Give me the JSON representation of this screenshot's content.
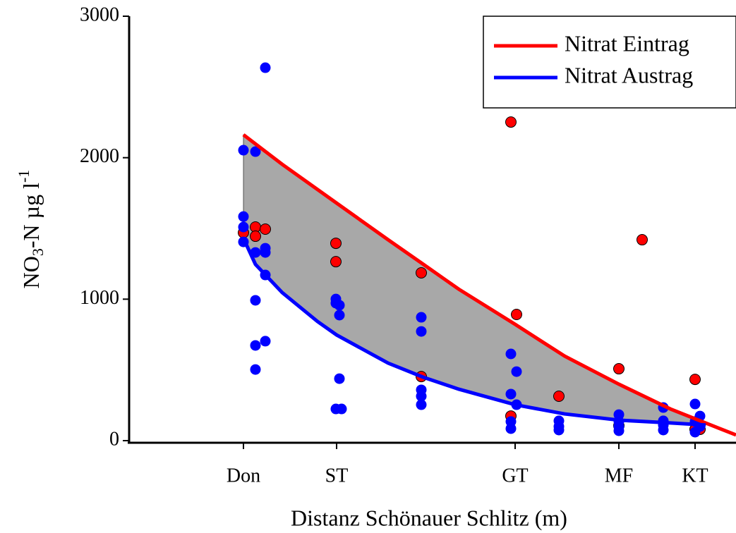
{
  "chart_data": {
    "type": "scatter",
    "xlabel": "Distanz Schönauer Schlitz (m)",
    "ylabel_parts": [
      "NO",
      "3",
      "-N µg l",
      "-1"
    ],
    "xlim": [
      -162,
      698
    ],
    "xticks": [
      {
        "value": 0,
        "label": "Don"
      },
      {
        "value": 132,
        "label": "ST"
      },
      {
        "value": 385,
        "label": "GT"
      },
      {
        "value": 532,
        "label": "MF"
      },
      {
        "value": 640,
        "label": "KT"
      }
    ],
    "ylim": [
      0,
      3000
    ],
    "yticks": [
      0,
      1000,
      2000,
      3000
    ],
    "legend": "upper right",
    "fill_color": "#a8a8a8",
    "series": [
      {
        "name": "Nitrat Eintrag",
        "color": "#ff0000",
        "x": [
          0,
          55,
          132,
          205,
          255,
          305,
          385,
          455,
          532,
          605,
          655,
          698
        ],
        "values": [
          2162,
          1953,
          1679,
          1420,
          1246,
          1071,
          822,
          598,
          399,
          224,
          125,
          40
        ],
        "points": {
          "x": [
            0,
            17,
            17,
            31,
            131,
            131,
            252,
            252,
            379,
            387,
            379,
            447,
            532,
            565,
            532,
            640,
            640,
            647
          ],
          "values": [
            1470,
            1510,
            1445,
            1495,
            1395,
            1265,
            1186,
            453,
            2252,
            892,
            174,
            314,
            508,
            1420,
            105,
            433,
            80,
            80
          ]
        }
      },
      {
        "name": "Nitrat Austrag",
        "color": "#0000ff",
        "x": [
          0,
          17,
          55,
          105,
          132,
          205,
          255,
          305,
          385,
          455,
          532,
          605,
          655
        ],
        "values": [
          1430,
          1246,
          1046,
          842,
          747,
          548,
          448,
          364,
          254,
          189,
          145,
          125,
          110
        ],
        "points": {
          "x": [
            0,
            17,
            31,
            0,
            0,
            0,
            17,
            31,
            31,
            31,
            17,
            17,
            31,
            17,
            131,
            131,
            136,
            136,
            136,
            131,
            139,
            252,
            252,
            252,
            252,
            252,
            379,
            387,
            379,
            387,
            379,
            379,
            447,
            447,
            447,
            532,
            532,
            532,
            532,
            595,
            595,
            595,
            595,
            640,
            647,
            640,
            647,
            640
          ],
          "values": [
            2053,
            2043,
            2636,
            1584,
            1510,
            1405,
            1330,
            1360,
            1330,
            1171,
            992,
            673,
            703,
            503,
            1001,
            972,
            957,
            887,
            438,
            224,
            224,
            872,
            772,
            359,
            314,
            254,
            613,
            488,
            329,
            254,
            135,
            85,
            140,
            100,
            75,
            184,
            135,
            100,
            70,
            234,
            140,
            110,
            75,
            259,
            174,
            135,
            100,
            60
          ]
        }
      }
    ]
  }
}
